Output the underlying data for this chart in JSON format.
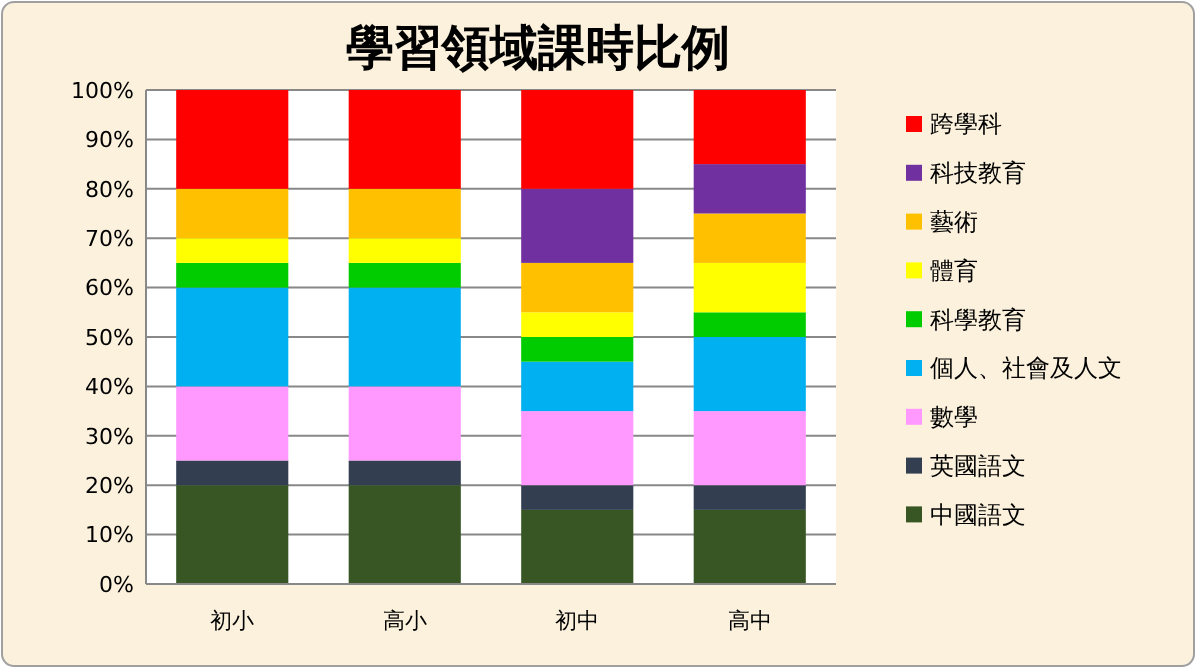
{
  "chart_data": {
    "type": "bar",
    "stacked": true,
    "title": "學習領域課時比例",
    "categories": [
      "初小",
      "高小",
      "初中",
      "高中"
    ],
    "series": [
      {
        "name": "中國語文",
        "color": "#375623",
        "values": [
          20,
          20,
          15,
          15
        ]
      },
      {
        "name": "英國語文",
        "color": "#333f50",
        "values": [
          5,
          5,
          5,
          5
        ]
      },
      {
        "name": "數學",
        "color": "#ff99ff",
        "values": [
          15,
          15,
          15,
          15
        ]
      },
      {
        "name": "個人、社會及人文",
        "color": "#00b0f0",
        "values": [
          20,
          20,
          10,
          15
        ]
      },
      {
        "name": "科學教育",
        "color": "#00cc00",
        "values": [
          5,
          5,
          5,
          5
        ]
      },
      {
        "name": "體育",
        "color": "#ffff00",
        "values": [
          5,
          5,
          5,
          10
        ]
      },
      {
        "name": "藝術",
        "color": "#ffc000",
        "values": [
          10,
          10,
          10,
          10
        ]
      },
      {
        "name": "科技教育",
        "color": "#7030a0",
        "values": [
          0,
          0,
          15,
          10
        ]
      },
      {
        "name": "跨學科",
        "color": "#ff0000",
        "values": [
          20,
          20,
          20,
          15
        ]
      }
    ],
    "ylim": [
      0,
      100
    ],
    "yticks": [
      {
        "value": 0,
        "label": "0%"
      },
      {
        "value": 10,
        "label": "10%"
      },
      {
        "value": 20,
        "label": "20%"
      },
      {
        "value": 30,
        "label": "30%"
      },
      {
        "value": 40,
        "label": "40%"
      },
      {
        "value": 50,
        "label": "50%"
      },
      {
        "value": 60,
        "label": "60%"
      },
      {
        "value": 70,
        "label": "70%"
      },
      {
        "value": 80,
        "label": "80%"
      },
      {
        "value": 90,
        "label": "90%"
      },
      {
        "value": 100,
        "label": "100%"
      }
    ],
    "grid": "y",
    "legend": "right"
  }
}
